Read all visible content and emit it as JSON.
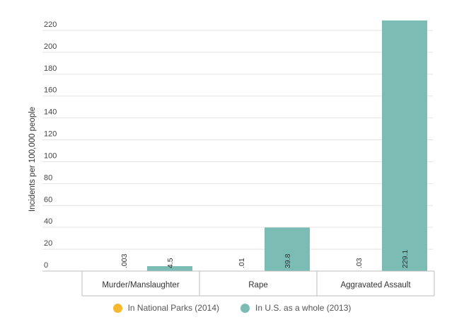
{
  "chart_data": {
    "type": "bar",
    "title": "",
    "xlabel": "",
    "ylabel": "Incidents per 100,000 people",
    "ylim": [
      0,
      230
    ],
    "yticks": [
      0,
      20,
      40,
      60,
      80,
      100,
      120,
      140,
      160,
      180,
      200,
      220
    ],
    "grid": true,
    "categories": [
      "Murder/Manslaughter",
      "Rape",
      "Aggravated Assault"
    ],
    "series": [
      {
        "name": "In National Parks (2014)",
        "color": "#f5b82e",
        "values": [
          0.003,
          0.01,
          0.03
        ],
        "labels": [
          ".003",
          ".01",
          ".03"
        ]
      },
      {
        "name": "In U.S. as a whole (2013)",
        "color": "#7bbdb5",
        "values": [
          4.5,
          39.8,
          229.1
        ],
        "labels": [
          "4.5",
          "39.8",
          "229.1"
        ]
      }
    ],
    "legend_position": "bottom-center"
  }
}
